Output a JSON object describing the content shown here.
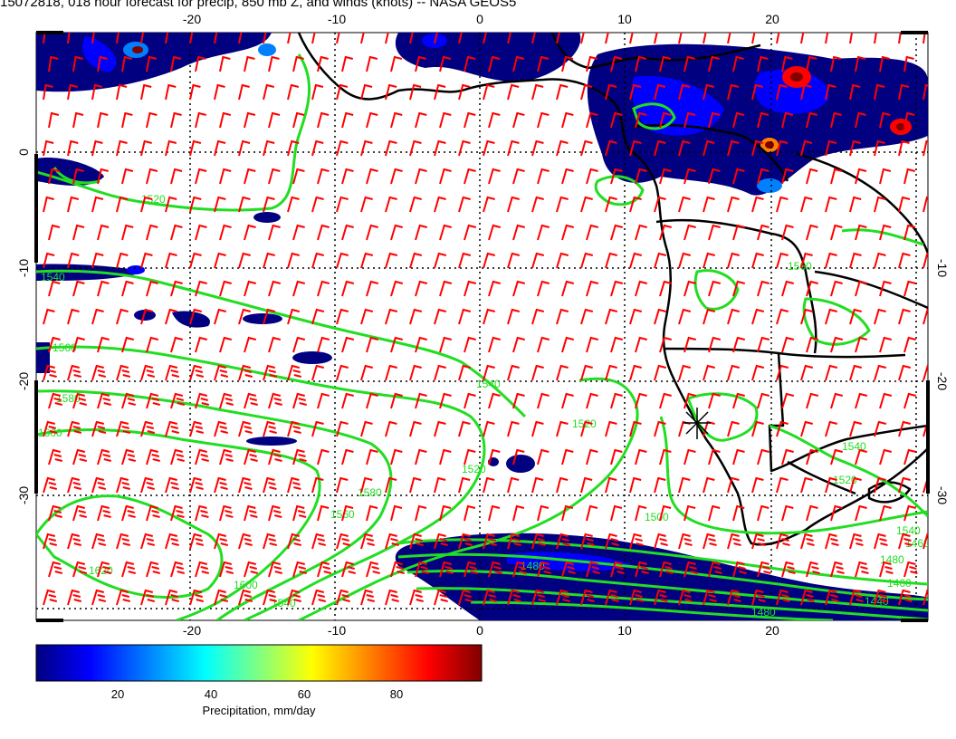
{
  "title": "15072818, 018 hour forecast for precip, 850 mb Z, and winds (knots) -- NASA GEOS5",
  "map": {
    "lon_range": [
      -30,
      30
    ],
    "lat_range": [
      -40,
      10
    ],
    "lon_ticks": [
      "-20",
      "-10",
      "0",
      "10",
      "20"
    ],
    "lat_ticks": [
      "0",
      "-10",
      "-20",
      "-30"
    ],
    "gridlines": "dotted"
  },
  "colorbar": {
    "ticks": [
      "20",
      "40",
      "60",
      "80"
    ],
    "label": "Precipitation, mm/day",
    "range": [
      0,
      98
    ],
    "colors": [
      "#000080",
      "#0000ff",
      "#0080ff",
      "#00ffff",
      "#80ff80",
      "#ffff00",
      "#ff8000",
      "#ff0000",
      "#800000"
    ]
  },
  "contours": {
    "color": "#22dd22",
    "labels": [
      "1520",
      "1540",
      "1560",
      "1580",
      "1600",
      "1620",
      "1540",
      "1560",
      "1580",
      "1600",
      "1540",
      "1520",
      "1520",
      "1540",
      "1500",
      "1480",
      "1460",
      "1440",
      "1520",
      "1540",
      "1560",
      "1480",
      "1460",
      "1480"
    ]
  },
  "winds": {
    "color": "#ff0000",
    "units": "knots"
  },
  "marker": {
    "label": "station-star"
  }
}
